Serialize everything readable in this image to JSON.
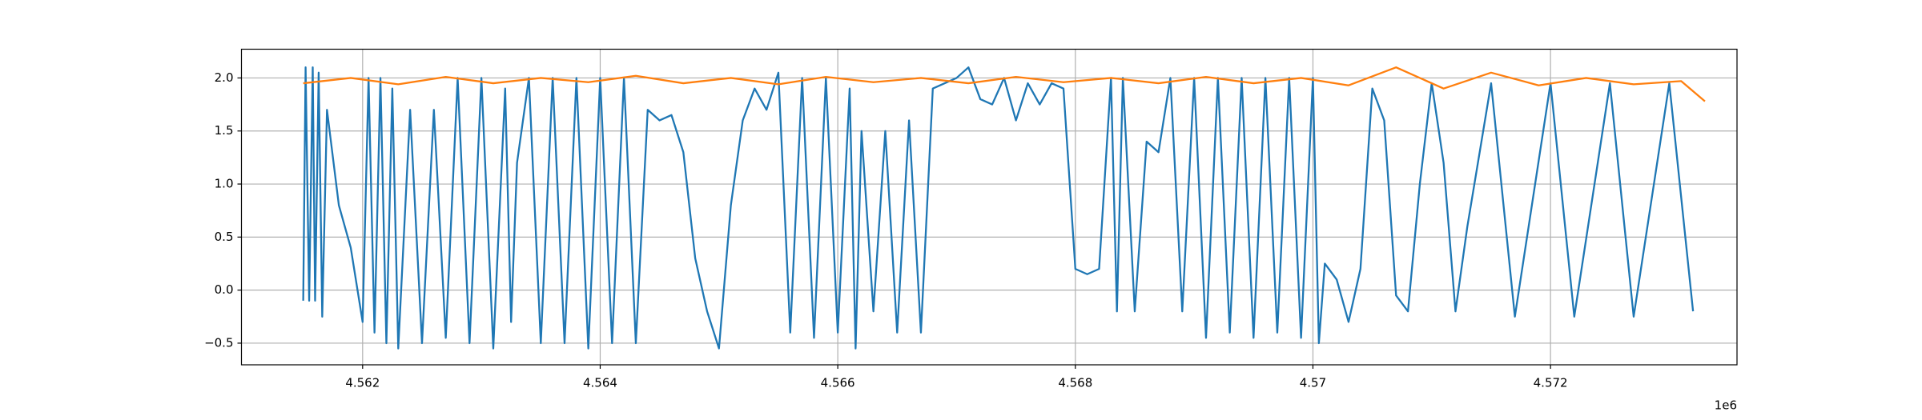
{
  "chart_data": {
    "type": "line",
    "x_offset_label": "1e6",
    "xlim": [
      4.56098,
      4.57357
    ],
    "ylim": [
      -0.704,
      2.271
    ],
    "xticks": [
      4.562,
      4.564,
      4.566,
      4.568,
      4.57,
      4.572
    ],
    "yticks": [
      {
        "value": -0.5,
        "label": "−0.5"
      },
      {
        "value": 0,
        "label": "0.0"
      },
      0.5,
      {
        "value": 1,
        "label": "1.0"
      },
      1.5,
      {
        "value": 2,
        "label": "2.0"
      }
    ],
    "grid": true,
    "series": [
      {
        "color": "#1f77b4",
        "x": [
          4.5615,
          4.56152,
          4.56155,
          4.56158,
          4.5616,
          4.56163,
          4.56166,
          4.5617,
          4.5618,
          4.5619,
          4.562,
          4.56205,
          4.5621,
          4.56215,
          4.5622,
          4.56225,
          4.5623,
          4.5624,
          4.5625,
          4.5626,
          4.5627,
          4.5628,
          4.5629,
          4.563,
          4.5631,
          4.5632,
          4.56325,
          4.5633,
          4.5634,
          4.5635,
          4.5636,
          4.5637,
          4.5638,
          4.5639,
          4.564,
          4.5641,
          4.5642,
          4.5643,
          4.5644,
          4.5645,
          4.5646,
          4.5647,
          4.5648,
          4.5649,
          4.565,
          4.5651,
          4.5652,
          4.5653,
          4.5654,
          4.5655,
          4.5656,
          4.5657,
          4.5658,
          4.5659,
          4.566,
          4.5661,
          4.56615,
          4.5662,
          4.5663,
          4.5664,
          4.5665,
          4.5666,
          4.5667,
          4.5668,
          4.5669,
          4.567,
          4.5671,
          4.5672,
          4.5673,
          4.5674,
          4.5675,
          4.5676,
          4.5677,
          4.5678,
          4.5679,
          4.568,
          4.5681,
          4.5682,
          4.5683,
          4.56835,
          4.5684,
          4.5685,
          4.5686,
          4.5687,
          4.5688,
          4.5689,
          4.569,
          4.5691,
          4.5692,
          4.5693,
          4.5694,
          4.5695,
          4.5696,
          4.5697,
          4.5698,
          4.5699,
          4.57,
          4.57005,
          4.5701,
          4.5702,
          4.5703,
          4.5704,
          4.5705,
          4.5706,
          4.5707,
          4.5708,
          4.5709,
          4.571,
          4.5711,
          4.5712,
          4.5713,
          4.5715,
          4.5717,
          4.572,
          4.5722,
          4.5725,
          4.5727,
          4.573,
          4.5732
        ],
        "values": [
          -0.1,
          2.1,
          -0.1,
          2.1,
          -0.1,
          2.05,
          -0.25,
          1.7,
          0.8,
          0.4,
          -0.3,
          2.0,
          -0.4,
          2.0,
          -0.5,
          1.9,
          -0.55,
          1.7,
          -0.5,
          1.7,
          -0.45,
          2.0,
          -0.5,
          2.0,
          -0.55,
          1.9,
          -0.3,
          1.2,
          2.0,
          -0.5,
          2.0,
          -0.5,
          2.0,
          -0.55,
          2.0,
          -0.5,
          2.0,
          -0.5,
          1.7,
          1.6,
          1.65,
          1.3,
          0.3,
          -0.2,
          -0.55,
          0.8,
          1.6,
          1.9,
          1.7,
          2.05,
          -0.4,
          2.0,
          -0.45,
          2.0,
          -0.4,
          1.9,
          -0.55,
          1.5,
          -0.2,
          1.5,
          -0.4,
          1.6,
          -0.4,
          1.9,
          1.95,
          2.0,
          2.1,
          1.8,
          1.75,
          2.0,
          1.6,
          1.95,
          1.75,
          1.95,
          1.9,
          0.2,
          0.15,
          0.2,
          2.0,
          -0.2,
          2.0,
          -0.2,
          1.4,
          1.3,
          2.0,
          -0.2,
          2.0,
          -0.45,
          2.0,
          -0.4,
          2.0,
          -0.45,
          2.0,
          -0.4,
          2.0,
          -0.45,
          2.0,
          -0.5,
          0.25,
          0.1,
          -0.3,
          0.2,
          1.9,
          1.6,
          -0.05,
          -0.2,
          1.0,
          1.95,
          1.2,
          -0.2,
          0.6,
          1.95,
          -0.25,
          1.95,
          -0.25,
          1.95,
          -0.25,
          1.95,
          -0.2
        ]
      },
      {
        "color": "#ff7f0e",
        "x": [
          4.5615,
          4.5619,
          4.5623,
          4.5627,
          4.5631,
          4.5635,
          4.5639,
          4.5643,
          4.5647,
          4.5651,
          4.5655,
          4.5659,
          4.5663,
          4.5667,
          4.5671,
          4.5675,
          4.5679,
          4.5683,
          4.5687,
          4.5691,
          4.5695,
          4.5699,
          4.5703,
          4.5707,
          4.5711,
          4.5715,
          4.5719,
          4.5723,
          4.5727,
          4.5731,
          4.5733
        ],
        "values": [
          1.95,
          2.0,
          1.94,
          2.01,
          1.95,
          2.0,
          1.96,
          2.02,
          1.95,
          2.0,
          1.94,
          2.01,
          1.96,
          2.0,
          1.95,
          2.01,
          1.96,
          2.0,
          1.95,
          2.01,
          1.95,
          2.0,
          1.93,
          2.1,
          1.9,
          2.05,
          1.93,
          2.0,
          1.94,
          1.97,
          1.78
        ]
      }
    ]
  }
}
